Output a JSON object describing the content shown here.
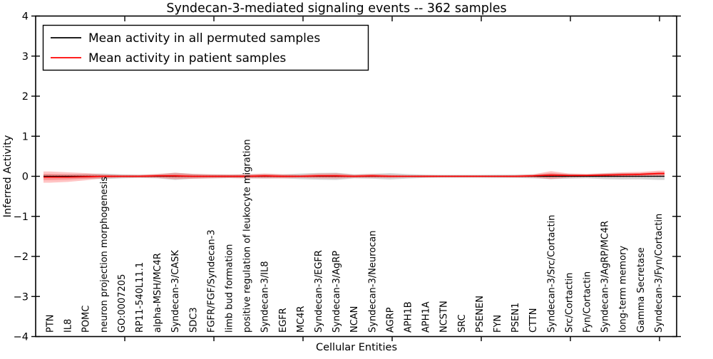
{
  "chart_data": {
    "type": "line",
    "title": "Syndecan-3-mediated signaling events -- 362 samples",
    "xlabel": "Cellular Entities",
    "ylabel": "Inferred Activity",
    "ylim": [
      -4,
      4
    ],
    "ytick_values": [
      4,
      3,
      2,
      1,
      0,
      -1,
      -2,
      -3,
      -4
    ],
    "ytick_labels": [
      "4",
      "3",
      "2",
      "1",
      "0",
      "−1",
      "−2",
      "−3",
      "−4"
    ],
    "grid": false,
    "legend_position": "upper left",
    "zero_line": {
      "value": 0,
      "style": "dotted",
      "color": "#000000"
    },
    "categories": [
      "PTN",
      "IL8",
      "POMC",
      "neuron projection morphogenesis",
      "GO:0007205",
      "RP11-540L11.1",
      "alpha-MSH/MC4R",
      "Syndecan-3/CASK",
      "SDC3",
      "FGFR/FGF/Syndecan-3",
      "limb bud formation",
      "positive regulation of leukocyte migration",
      "Syndecan-3/IL8",
      "EGFR",
      "MC4R",
      "Syndecan-3/EGFR",
      "Syndecan-3/AgRP",
      "NCAN",
      "Syndecan-3/Neurocan",
      "AGRP",
      "APH1B",
      "APH1A",
      "NCSTN",
      "SRC",
      "PSENEN",
      "FYN",
      "PSEN1",
      "CTTN",
      "Syndecan-3/Src/Cortactin",
      "Src/Cortactin",
      "Fyn/Cortactin",
      "Syndecan-3/AgRP/MC4R",
      "long-term memory",
      "Gamma Secretase",
      "Syndecan-3/Fyn/Cortactin"
    ],
    "series": [
      {
        "name": "Mean activity in all permuted samples",
        "color": "#000000",
        "values": [
          0,
          0,
          0,
          0,
          0,
          0,
          0,
          0,
          0,
          0,
          0,
          0,
          0,
          0,
          0,
          0,
          0,
          0,
          0,
          0,
          0,
          0,
          0,
          0,
          0,
          0,
          0,
          0,
          0,
          0,
          0,
          0,
          0,
          0,
          0
        ],
        "band_half_widths": [
          0.05,
          0.05,
          0.06,
          0.07,
          0.05,
          0.04,
          0.05,
          0.09,
          0.06,
          0.05,
          0.045,
          0.05,
          0.055,
          0.05,
          0.07,
          0.085,
          0.09,
          0.05,
          0.06,
          0.08,
          0.055,
          0.04,
          0.035,
          0.035,
          0.035,
          0.04,
          0.04,
          0.05,
          0.07,
          0.06,
          0.05,
          0.07,
          0.08,
          0.075,
          0.09
        ],
        "band_color": "rgba(120,120,120,0.30)",
        "inner_band_scale": 0
      },
      {
        "name": "Mean activity in patient samples",
        "color": "#ff0000",
        "values": [
          -0.02,
          -0.02,
          -0.01,
          0,
          0,
          0,
          0.01,
          0.01,
          0,
          0,
          0,
          0,
          0.01,
          0,
          0,
          0.01,
          0.01,
          0,
          0.01,
          0,
          0,
          0,
          0,
          0,
          0,
          0,
          0,
          0.01,
          0.03,
          0.02,
          0.02,
          0.03,
          0.04,
          0.05,
          0.07
        ],
        "band_half_widths": [
          0.14,
          0.12,
          0.09,
          0.05,
          0.035,
          0.035,
          0.05,
          0.08,
          0.06,
          0.05,
          0.045,
          0.05,
          0.06,
          0.05,
          0.04,
          0.06,
          0.065,
          0.04,
          0.05,
          0.04,
          0.03,
          0.03,
          0.025,
          0.025,
          0.025,
          0.025,
          0.03,
          0.04,
          0.1,
          0.05,
          0.04,
          0.05,
          0.06,
          0.06,
          0.07
        ],
        "band_color": "rgba(255,60,60,0.30)",
        "inner_band_scale": 0.55
      }
    ]
  }
}
